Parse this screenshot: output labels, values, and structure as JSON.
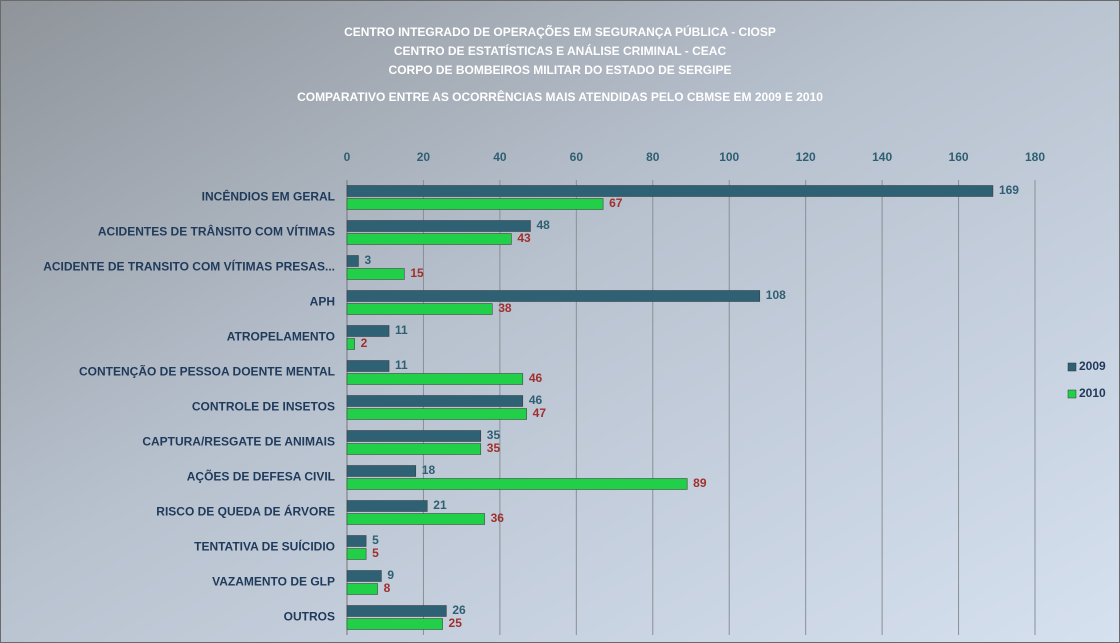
{
  "chart_data": {
    "type": "barh",
    "title": [
      "CENTRO INTEGRADO DE OPERAÇÕES EM SEGURANÇA PÚBLICA - CIOSP",
      "CENTRO DE ESTATÍSTICAS E ANÁLISE CRIMINAL - CEAC",
      "CORPO DE BOMBEIROS MILITAR DO ESTADO DE SERGIPE",
      "COMPARATIVO ENTRE AS OCORRÊNCIAS MAIS ATENDIDAS PELO CBMSE EM 2009 E 2010"
    ],
    "categories": [
      "INCÊNDIOS EM GERAL",
      "ACIDENTES DE TRÂNSITO COM VÍTIMAS",
      "ACIDENTE DE TRANSITO COM VÍTIMAS PRESAS...",
      "APH",
      "ATROPELAMENTO",
      "CONTENÇÃO DE PESSOA DOENTE MENTAL",
      "CONTROLE DE INSETOS",
      "CAPTURA/RESGATE DE ANIMAIS",
      "AÇÕES DE DEFESA CIVIL",
      "RISCO DE QUEDA DE ÁRVORE",
      "TENTATIVA DE SUÍCIDIO",
      "VAZAMENTO DE GLP",
      "OUTROS"
    ],
    "series": [
      {
        "name": "2009",
        "color": "#2f6174",
        "label_color": "#2f5f72",
        "values": [
          169,
          48,
          3,
          108,
          11,
          11,
          46,
          35,
          18,
          21,
          5,
          9,
          26
        ]
      },
      {
        "name": "2010",
        "color": "#22cf48",
        "label_color": "#a0302e",
        "values": [
          67,
          43,
          15,
          38,
          2,
          46,
          47,
          35,
          89,
          36,
          5,
          8,
          25
        ]
      }
    ],
    "xlim": [
      0,
      180
    ],
    "xticks": [
      0,
      20,
      40,
      60,
      80,
      100,
      120,
      140,
      160,
      180
    ],
    "grid": true,
    "legend": "right"
  }
}
